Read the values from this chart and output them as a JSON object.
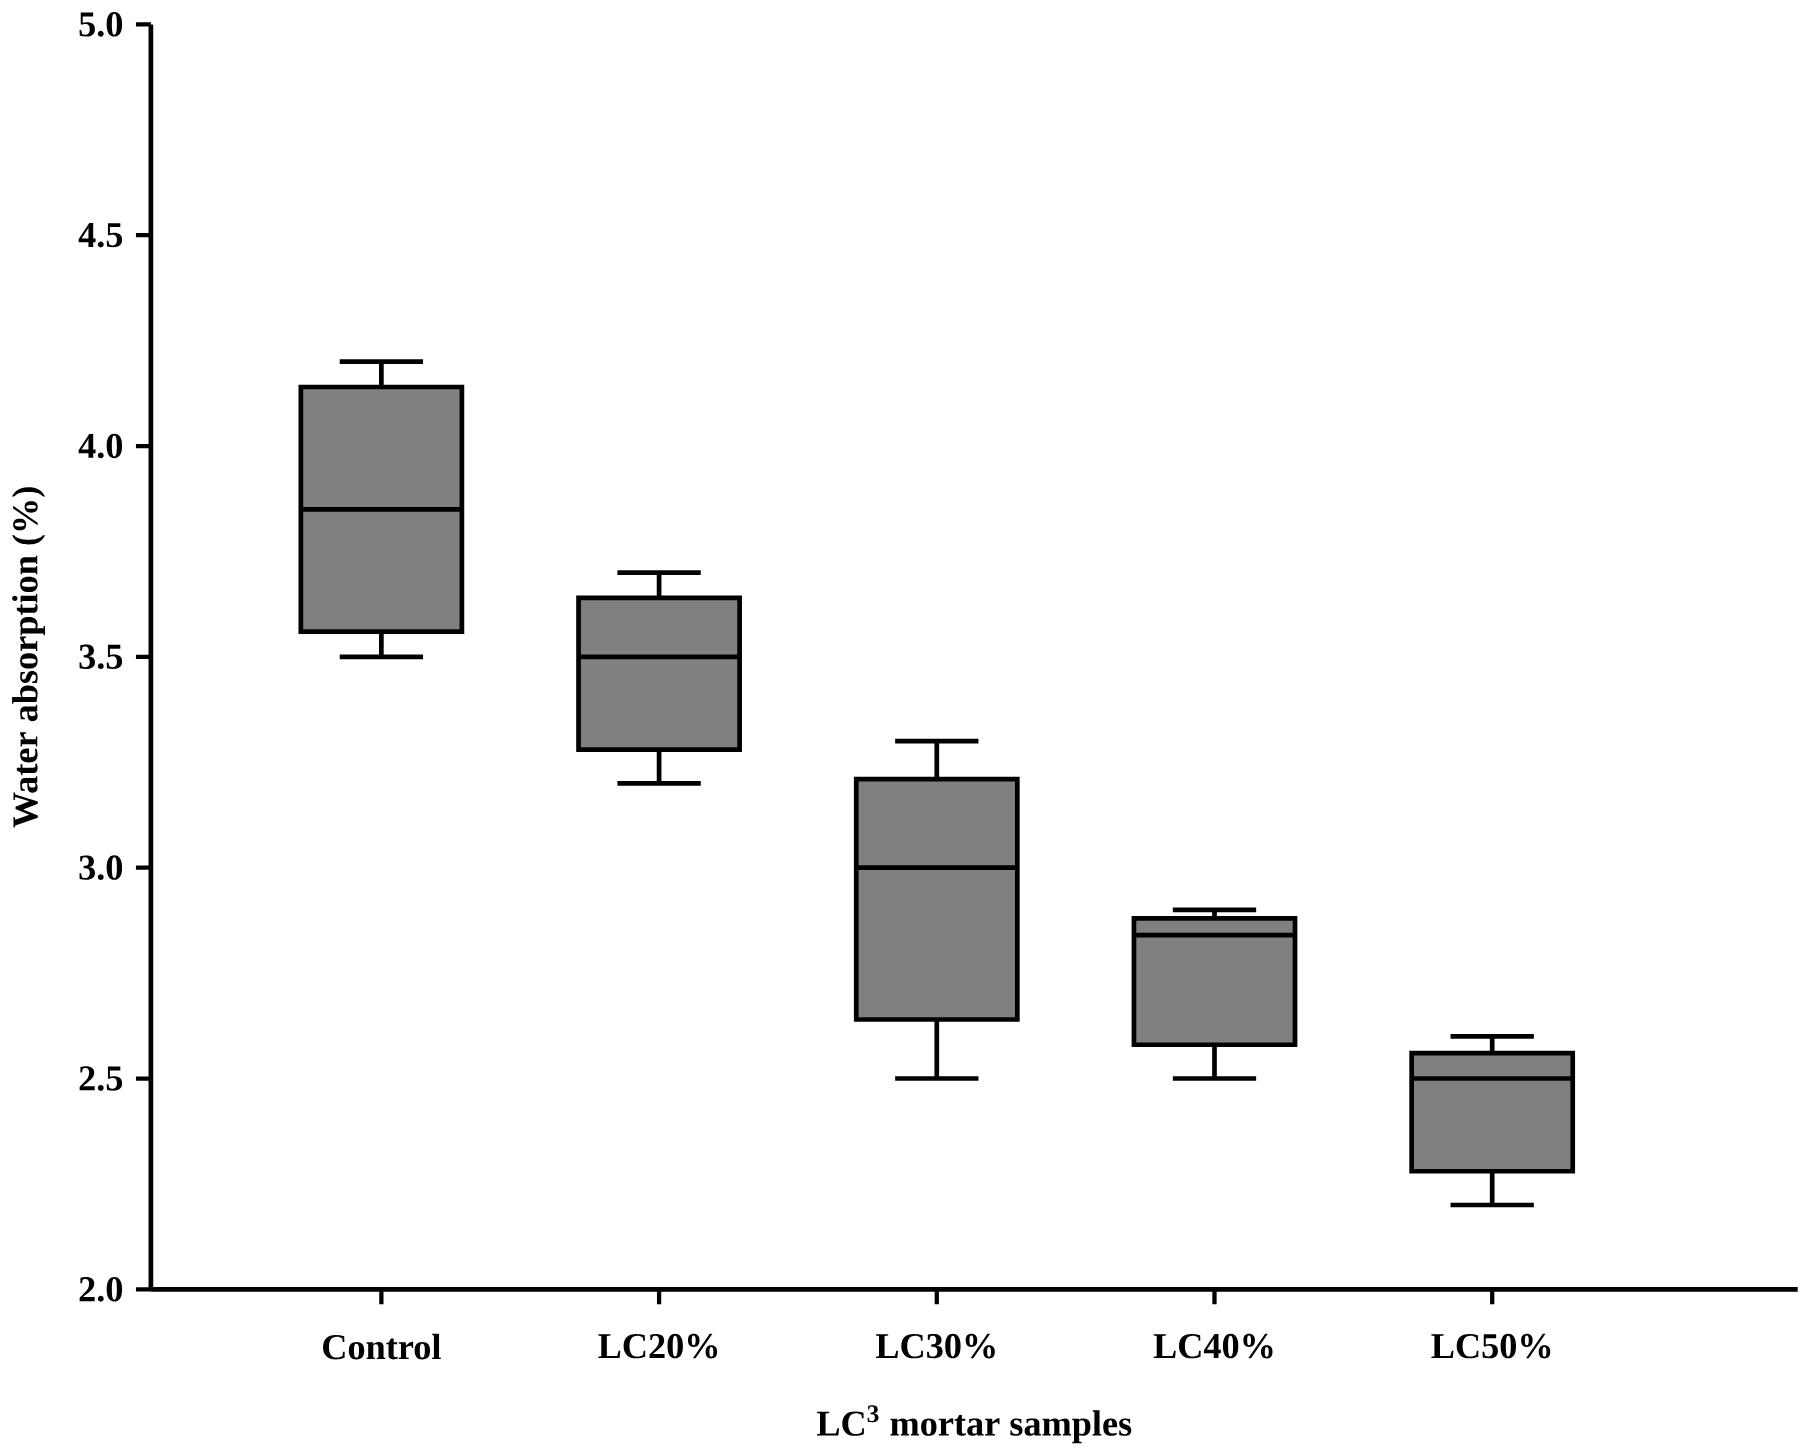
{
  "chart_data": {
    "type": "box",
    "xlabel": "LC$^{3}$ mortar samples",
    "ylabel": "Water absorption (%)",
    "categories": [
      "Control",
      "LC20%",
      "LC30%",
      "LC40%",
      "LC50%"
    ],
    "color": "#808080",
    "boxes": [
      {
        "low": 3.5,
        "q1": 3.56,
        "median": 3.85,
        "q3": 4.14,
        "high": 4.2
      },
      {
        "low": 3.2,
        "q1": 3.28,
        "median": 3.5,
        "q3": 3.64,
        "high": 3.7
      },
      {
        "low": 2.5,
        "q1": 2.64,
        "median": 3.0,
        "q3": 3.21,
        "high": 3.3
      },
      {
        "low": 2.5,
        "q1": 2.58,
        "median": 2.84,
        "q3": 2.88,
        "high": 2.9
      },
      {
        "low": 2.2,
        "q1": 2.28,
        "median": 2.5,
        "q3": 2.56,
        "high": 2.6
      }
    ],
    "ylim": [
      2,
      5
    ],
    "yticks": [
      {
        "value": 2,
        "label": "2.0"
      },
      {
        "value": 2.5,
        "label": "2.5"
      },
      {
        "value": 3,
        "label": "3.0"
      },
      {
        "value": 3.5,
        "label": "3.5"
      },
      {
        "value": 4,
        "label": "4.0"
      },
      {
        "value": 4.5,
        "label": "4.5"
      },
      {
        "value": 5,
        "label": "5.0"
      }
    ]
  }
}
